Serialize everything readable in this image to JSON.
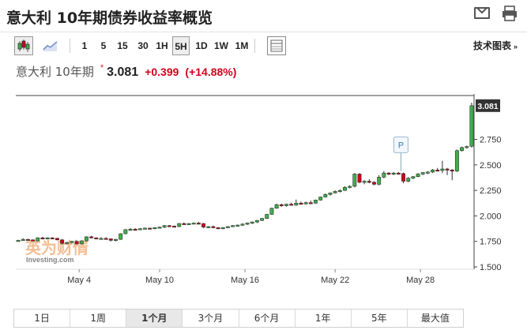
{
  "page": {
    "title": "意大利 10年期债券收益率概览"
  },
  "toolbar": {
    "intervals": [
      "1",
      "5",
      "15",
      "30",
      "1H",
      "5H",
      "1D",
      "1W",
      "1M"
    ],
    "active_interval": "5H",
    "tech_chart_label": "技术图表",
    "tech_chart_arrow": "»"
  },
  "quote": {
    "name": "意大利 10年期",
    "star": "*",
    "price": "3.081",
    "change": "+0.399",
    "change_pct": "(+14.88%)"
  },
  "watermark": {
    "brand_cn": "英为财情",
    "brand_en": "Investing.com"
  },
  "range_tabs": {
    "items": [
      "1日",
      "1周",
      "1个月",
      "3个月",
      "6个月",
      "1年",
      "5年",
      "最大值"
    ],
    "active": "1个月"
  },
  "chart_data": {
    "type": "candlestick",
    "title": "",
    "xlabel": "",
    "ylabel": "",
    "ylim": [
      1.5,
      3.18
    ],
    "yticks": [
      "1.500",
      "1.750",
      "2.000",
      "2.250",
      "2.500",
      "2.750"
    ],
    "last_value_label": "3.081",
    "xticks": [
      {
        "label": "May 4",
        "at": 12.5
      },
      {
        "label": "May 10",
        "at": 29
      },
      {
        "label": "May 16",
        "at": 46.5
      },
      {
        "label": "May 22",
        "at": 65
      },
      {
        "label": "May 28",
        "at": 82.5
      }
    ],
    "marker": {
      "label": "P",
      "at": 78.5,
      "value": 2.62
    },
    "colors": {
      "up": "#3fae49",
      "down": "#d0021b"
    },
    "candles": [
      [
        1.755,
        1.765,
        1.75,
        1.76
      ],
      [
        1.76,
        1.78,
        1.755,
        1.77
      ],
      [
        1.77,
        1.775,
        1.76,
        1.765
      ],
      [
        1.765,
        1.77,
        1.75,
        1.755
      ],
      [
        1.755,
        1.79,
        1.75,
        1.785
      ],
      [
        1.785,
        1.795,
        1.77,
        1.775
      ],
      [
        1.775,
        1.79,
        1.77,
        1.785
      ],
      [
        1.785,
        1.79,
        1.775,
        1.78
      ],
      [
        1.78,
        1.785,
        1.76,
        1.765
      ],
      [
        1.765,
        1.775,
        1.72,
        1.73
      ],
      [
        1.73,
        1.745,
        1.72,
        1.74
      ],
      [
        1.74,
        1.755,
        1.73,
        1.75
      ],
      [
        1.75,
        1.76,
        1.72,
        1.725
      ],
      [
        1.725,
        1.76,
        1.72,
        1.755
      ],
      [
        1.755,
        1.8,
        1.75,
        1.795
      ],
      [
        1.795,
        1.805,
        1.78,
        1.785
      ],
      [
        1.785,
        1.79,
        1.77,
        1.775
      ],
      [
        1.775,
        1.79,
        1.77,
        1.78
      ],
      [
        1.78,
        1.79,
        1.77,
        1.775
      ],
      [
        1.775,
        1.78,
        1.75,
        1.76
      ],
      [
        1.76,
        1.775,
        1.75,
        1.77
      ],
      [
        1.77,
        1.83,
        1.765,
        1.825
      ],
      [
        1.825,
        1.87,
        1.82,
        1.865
      ],
      [
        1.865,
        1.88,
        1.855,
        1.87
      ],
      [
        1.87,
        1.88,
        1.86,
        1.865
      ],
      [
        1.865,
        1.88,
        1.86,
        1.875
      ],
      [
        1.875,
        1.885,
        1.87,
        1.88
      ],
      [
        1.88,
        1.885,
        1.87,
        1.875
      ],
      [
        1.875,
        1.89,
        1.87,
        1.885
      ],
      [
        1.885,
        1.895,
        1.88,
        1.89
      ],
      [
        1.89,
        1.91,
        1.88,
        1.905
      ],
      [
        1.905,
        1.91,
        1.89,
        1.9
      ],
      [
        1.9,
        1.905,
        1.89,
        1.895
      ],
      [
        1.895,
        1.93,
        1.89,
        1.925
      ],
      [
        1.925,
        1.935,
        1.915,
        1.92
      ],
      [
        1.92,
        1.93,
        1.91,
        1.925
      ],
      [
        1.925,
        1.935,
        1.92,
        1.93
      ],
      [
        1.93,
        1.94,
        1.92,
        1.925
      ],
      [
        1.925,
        1.93,
        1.88,
        1.89
      ],
      [
        1.89,
        1.9,
        1.88,
        1.895
      ],
      [
        1.895,
        1.905,
        1.88,
        1.885
      ],
      [
        1.885,
        1.89,
        1.87,
        1.88
      ],
      [
        1.88,
        1.89,
        1.87,
        1.885
      ],
      [
        1.885,
        1.9,
        1.88,
        1.895
      ],
      [
        1.895,
        1.91,
        1.89,
        1.905
      ],
      [
        1.905,
        1.915,
        1.895,
        1.91
      ],
      [
        1.91,
        1.925,
        1.9,
        1.92
      ],
      [
        1.92,
        1.935,
        1.91,
        1.93
      ],
      [
        1.93,
        1.945,
        1.92,
        1.94
      ],
      [
        1.94,
        1.96,
        1.93,
        1.955
      ],
      [
        1.955,
        1.98,
        1.95,
        1.975
      ],
      [
        1.975,
        2.02,
        1.97,
        2.015
      ],
      [
        2.015,
        2.08,
        2.01,
        2.075
      ],
      [
        2.075,
        2.12,
        2.07,
        2.11
      ],
      [
        2.11,
        2.12,
        2.09,
        2.1
      ],
      [
        2.1,
        2.12,
        2.09,
        2.115
      ],
      [
        2.115,
        2.13,
        2.1,
        2.105
      ],
      [
        2.105,
        2.16,
        2.1,
        2.125
      ],
      [
        2.125,
        2.14,
        2.11,
        2.12
      ],
      [
        2.12,
        2.14,
        2.11,
        2.13
      ],
      [
        2.13,
        2.15,
        2.12,
        2.125
      ],
      [
        2.125,
        2.16,
        2.12,
        2.155
      ],
      [
        2.155,
        2.19,
        2.15,
        2.185
      ],
      [
        2.185,
        2.22,
        2.18,
        2.21
      ],
      [
        2.21,
        2.23,
        2.2,
        2.225
      ],
      [
        2.225,
        2.25,
        2.22,
        2.24
      ],
      [
        2.24,
        2.26,
        2.23,
        2.25
      ],
      [
        2.25,
        2.29,
        2.245,
        2.28
      ],
      [
        2.28,
        2.3,
        2.27,
        2.29
      ],
      [
        2.29,
        2.42,
        2.28,
        2.41
      ],
      [
        2.41,
        2.42,
        2.32,
        2.33
      ],
      [
        2.33,
        2.35,
        2.31,
        2.34
      ],
      [
        2.34,
        2.36,
        2.32,
        2.33
      ],
      [
        2.33,
        2.34,
        2.3,
        2.31
      ],
      [
        2.31,
        2.4,
        2.3,
        2.38
      ],
      [
        2.38,
        2.44,
        2.37,
        2.42
      ],
      [
        2.42,
        2.43,
        2.4,
        2.41
      ],
      [
        2.41,
        2.43,
        2.4,
        2.42
      ],
      [
        2.42,
        2.43,
        2.41,
        2.415
      ],
      [
        2.415,
        2.425,
        2.32,
        2.34
      ],
      [
        2.34,
        2.38,
        2.33,
        2.37
      ],
      [
        2.37,
        2.39,
        2.36,
        2.385
      ],
      [
        2.385,
        2.42,
        2.38,
        2.41
      ],
      [
        2.41,
        2.43,
        2.4,
        2.425
      ],
      [
        2.425,
        2.44,
        2.41,
        2.43
      ],
      [
        2.43,
        2.46,
        2.42,
        2.45
      ],
      [
        2.45,
        2.47,
        2.44,
        2.445
      ],
      [
        2.445,
        2.54,
        2.42,
        2.46
      ],
      [
        2.46,
        2.47,
        2.4,
        2.45
      ],
      [
        2.45,
        2.46,
        2.35,
        2.44
      ],
      [
        2.44,
        2.65,
        2.43,
        2.64
      ],
      [
        2.64,
        2.68,
        2.63,
        2.67
      ],
      [
        2.67,
        2.69,
        2.66,
        2.68
      ],
      [
        2.682,
        3.11,
        2.67,
        3.081
      ]
    ]
  }
}
